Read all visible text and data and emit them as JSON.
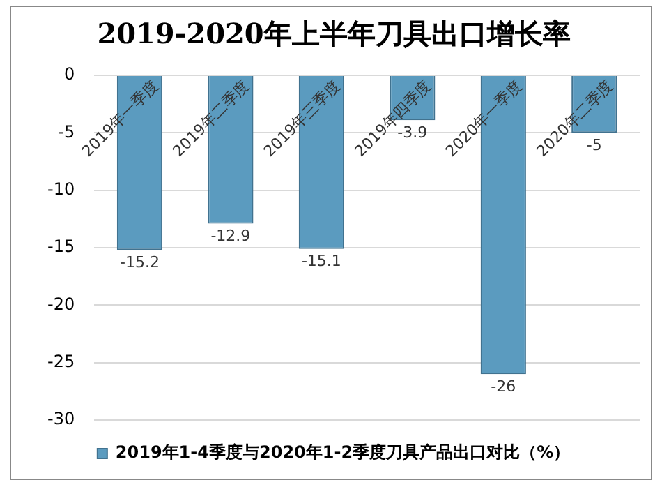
{
  "chart_data": {
    "type": "bar",
    "title": "2019-2020年上半年刀具出口增长率",
    "categories": [
      "2019年一季度",
      "2019年二季度",
      "2019年三季度",
      "2019年四季度",
      "2020年一季度",
      "2020年二季度"
    ],
    "series": [
      {
        "name": "2019年1-4季度与2020年1-2季度刀具产品出口对比（%）",
        "color": "#5b9bbf",
        "values": [
          -15.2,
          -12.9,
          -15.1,
          -3.9,
          -26,
          -5
        ]
      }
    ],
    "ylim": [
      -30,
      0
    ],
    "yticks": [
      -30,
      -25,
      -20,
      -15,
      -10,
      -5,
      0
    ],
    "grid": "y",
    "legend": "bottom",
    "data_labels": true
  }
}
